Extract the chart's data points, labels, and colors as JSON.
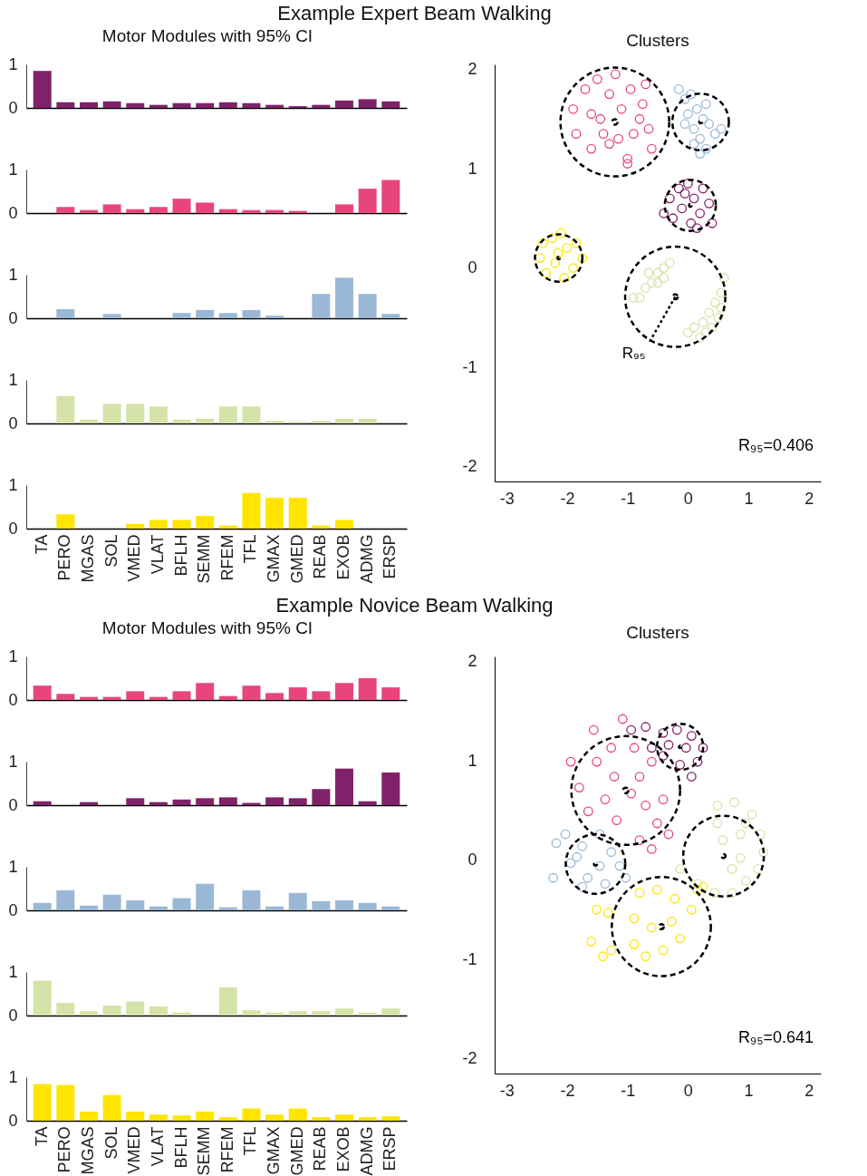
{
  "chart_data": [
    {
      "type": "bar",
      "title": "Example Expert Beam Walking",
      "subtitle": "Motor Modules with 95% CI",
      "categories": [
        null,
        null,
        null,
        null,
        null,
        null,
        null,
        null,
        null,
        null,
        null,
        null,
        null,
        null,
        null,
        null
      ],
      "values": [
        0.85,
        0.13,
        0.13,
        0.15,
        0.11,
        0.07,
        0.11,
        0.11,
        0.13,
        0.11,
        0.07,
        0.04,
        0.07,
        0.17,
        0.2,
        0.15
      ],
      "color": "#80226a",
      "ylim": [
        0,
        1
      ],
      "yticks": [
        0,
        1
      ],
      "tick_labels": "y"
    },
    {
      "type": "bar",
      "categories": [
        null,
        null,
        null,
        null,
        null,
        null,
        null,
        null,
        null,
        null,
        null,
        null,
        null,
        null,
        null,
        null
      ],
      "values": [
        0,
        0.14,
        0.07,
        0.2,
        0.09,
        0.14,
        0.33,
        0.24,
        0.09,
        0.07,
        0.07,
        0.05,
        0,
        0.2,
        0.56,
        0.76
      ],
      "color": "#e8457c",
      "ylim": [
        0,
        1
      ],
      "yticks": [
        0,
        1
      ],
      "tick_labels": "y"
    },
    {
      "type": "bar",
      "categories": [
        null,
        null,
        null,
        null,
        null,
        null,
        null,
        null,
        null,
        null,
        null,
        null,
        null,
        null,
        null,
        null
      ],
      "values": [
        0,
        0.21,
        0,
        0.1,
        0,
        0,
        0.12,
        0.19,
        0.12,
        0.19,
        0.06,
        0,
        0.56,
        0.93,
        0.56,
        0.1
      ],
      "color": "#9ab8d6",
      "ylim": [
        0,
        1
      ],
      "yticks": [
        0,
        1
      ],
      "tick_labels": "y"
    },
    {
      "type": "bar",
      "categories": [
        null,
        null,
        null,
        null,
        null,
        null,
        null,
        null,
        null,
        null,
        null,
        null,
        null,
        null,
        null,
        null
      ],
      "values": [
        0,
        0.63,
        0.09,
        0.45,
        0.45,
        0.39,
        0.09,
        0.11,
        0.39,
        0.39,
        0.06,
        0.04,
        0.06,
        0.11,
        0.11,
        0
      ],
      "color": "#d5e3a8",
      "ylim": [
        0,
        1
      ],
      "yticks": [
        0,
        1
      ],
      "tick_labels": "y"
    },
    {
      "type": "bar",
      "categories": [
        "TA",
        "PERO",
        "MGAS",
        "SOL",
        "VMED",
        "VLAT",
        "BFLH",
        "SEMM",
        "RFEM",
        "TFL",
        "GMAX",
        "GMED",
        "REAB",
        "EXOB",
        "ADMG",
        "ERSP"
      ],
      "values": [
        0,
        0.33,
        0,
        0,
        0.11,
        0.2,
        0.2,
        0.29,
        0.07,
        0.82,
        0.71,
        0.71,
        0.07,
        0.2,
        0,
        0
      ],
      "color": "#ffe500",
      "ylim": [
        0,
        1
      ],
      "yticks": [
        0,
        1
      ]
    },
    {
      "type": "scatter",
      "title": "Clusters",
      "xlim": [
        -3.2,
        2.2
      ],
      "xticks": [
        -3,
        -2,
        -1,
        0,
        1,
        2
      ],
      "ylim": [
        -2.15,
        2.05
      ],
      "yticks": [
        -2,
        -1,
        0,
        1,
        2
      ],
      "annotations": [
        {
          "text": "R₉₅",
          "x": -0.64,
          "y": -0.75
        },
        "R₉₅=0.406"
      ],
      "series": [
        {
          "color": "#e8457c",
          "marker": "circle",
          "x": [
            -1.9,
            -1.85,
            -1.7,
            -1.6,
            -1.5,
            -1.45,
            -1.3,
            -1.3,
            -1.2,
            -1.1,
            -1.0,
            -0.95,
            -0.9,
            -0.75,
            -0.7,
            -0.65,
            -0.6,
            -1.0,
            -1.4,
            -1.6,
            -0.8,
            -1.15
          ],
          "values": [
            1.6,
            1.35,
            1.8,
            1.2,
            1.9,
            1.5,
            1.75,
            1.25,
            1.95,
            1.6,
            1.1,
            1.8,
            1.35,
            1.65,
            1.85,
            1.4,
            1.2,
            1.05,
            1.35,
            1.55,
            1.5,
            1.3
          ]
        },
        {
          "color": "#9ab8d6",
          "marker": "circle",
          "x": [
            -0.15,
            -0.05,
            0.0,
            0.05,
            0.1,
            0.15,
            0.2,
            0.25,
            0.3,
            0.35,
            0.45,
            0.55,
            0.2,
            -0.05,
            0.3,
            0.1
          ],
          "values": [
            1.8,
            1.7,
            1.55,
            1.75,
            1.4,
            1.6,
            1.3,
            1.5,
            1.2,
            1.45,
            1.35,
            1.4,
            1.15,
            1.45,
            1.65,
            1.25
          ]
        },
        {
          "color": "#80226a",
          "marker": "circle",
          "x": [
            -0.4,
            -0.3,
            -0.25,
            -0.15,
            -0.1,
            0.0,
            0.05,
            0.1,
            0.2,
            0.25,
            0.35,
            0.4,
            0.15,
            -0.05
          ],
          "values": [
            0.55,
            0.7,
            0.5,
            0.8,
            0.6,
            0.85,
            0.45,
            0.7,
            0.55,
            0.8,
            0.65,
            0.45,
            0.4,
            0.75
          ]
        },
        {
          "color": "#ffe500",
          "marker": "circle",
          "x": [
            -2.45,
            -2.4,
            -2.35,
            -2.25,
            -2.2,
            -2.1,
            -2.05,
            -2.0,
            -1.9,
            -1.85,
            -1.75,
            -2.15
          ],
          "values": [
            0.1,
            0.25,
            -0.05,
            0.3,
            0.05,
            0.35,
            -0.1,
            0.2,
            0.0,
            0.25,
            0.1,
            0.15
          ]
        },
        {
          "color": "#d5e3a8",
          "marker": "circle",
          "x": [
            -0.3,
            -0.4,
            -0.5,
            -0.6,
            -0.7,
            -0.8,
            -0.9,
            -0.5,
            -0.65,
            -0.4,
            0.6,
            0.55,
            0.45,
            0.5,
            0.35,
            0.25,
            0.1,
            0.2,
            0.0,
            0.3,
            0.4,
            0.55
          ],
          "values": [
            0.05,
            0.0,
            -0.05,
            -0.15,
            -0.2,
            -0.3,
            -0.3,
            -0.15,
            -0.05,
            -0.1,
            -0.1,
            -0.25,
            -0.35,
            -0.5,
            -0.45,
            -0.55,
            -0.6,
            -0.7,
            -0.65,
            -0.65,
            -0.6,
            -0.4
          ]
        },
        {
          "type": "line",
          "color": "#000000",
          "line_style": "dotted",
          "x": [
            -0.21,
            -0.64
          ],
          "values": [
            -0.29,
            -0.75
          ]
        },
        {
          "type": "bubble",
          "color": "#000000",
          "line_style": "dashed",
          "x": [
            -1.21,
            0.21,
            0.04,
            -2.14,
            -0.21
          ],
          "values": [
            1.47,
            1.47,
            0.63,
            0.1,
            -0.29
          ],
          "sizes": [
            1,
            0.27,
            0.22,
            0.19,
            0.85
          ]
        }
      ]
    },
    {
      "type": "bar",
      "title": "Example Novice Beam Walking",
      "subtitle": "Motor Modules with 95% CI",
      "categories": [
        null,
        null,
        null,
        null,
        null,
        null,
        null,
        null,
        null,
        null,
        null,
        null,
        null,
        null,
        null,
        null
      ],
      "values": [
        0.33,
        0.14,
        0.07,
        0.07,
        0.2,
        0.07,
        0.2,
        0.39,
        0.09,
        0.33,
        0.16,
        0.29,
        0.2,
        0.39,
        0.5,
        0.29
      ],
      "color": "#e8457c",
      "ylim": [
        0,
        1
      ],
      "yticks": [
        0,
        1
      ],
      "tick_labels": "y"
    },
    {
      "type": "bar",
      "categories": [
        null,
        null,
        null,
        null,
        null,
        null,
        null,
        null,
        null,
        null,
        null,
        null,
        null,
        null,
        null,
        null
      ],
      "values": [
        0.09,
        0,
        0.07,
        0,
        0.16,
        0.07,
        0.13,
        0.16,
        0.18,
        0.05,
        0.18,
        0.16,
        0.37,
        0.84,
        0.09,
        0.75
      ],
      "color": "#80226a",
      "ylim": [
        0,
        1
      ],
      "yticks": [
        0,
        1
      ],
      "tick_labels": "y"
    },
    {
      "type": "bar",
      "categories": [
        null,
        null,
        null,
        null,
        null,
        null,
        null,
        null,
        null,
        null,
        null,
        null,
        null,
        null,
        null,
        null
      ],
      "values": [
        0.17,
        0.46,
        0.11,
        0.36,
        0.23,
        0.09,
        0.28,
        0.61,
        0.07,
        0.46,
        0.09,
        0.4,
        0.21,
        0.23,
        0.17,
        0.09
      ],
      "color": "#9ab8d6",
      "ylim": [
        0,
        1
      ],
      "yticks": [
        0,
        1
      ],
      "tick_labels": "y"
    },
    {
      "type": "bar",
      "categories": [
        null,
        null,
        null,
        null,
        null,
        null,
        null,
        null,
        null,
        null,
        null,
        null,
        null,
        null,
        null,
        null
      ],
      "values": [
        0.8,
        0.29,
        0.1,
        0.23,
        0.32,
        0.21,
        0.07,
        0,
        0.65,
        0.12,
        0.07,
        0.1,
        0.1,
        0.16,
        0.07,
        0.16
      ],
      "color": "#d5e3a8",
      "ylim": [
        0,
        1
      ],
      "yticks": [
        0,
        1
      ],
      "tick_labels": "y"
    },
    {
      "type": "bar",
      "categories": [
        "TA",
        "PERO",
        "MGAS",
        "SOL",
        "VMED",
        "VLAT",
        "BFLH",
        "SEMM",
        "RFEM",
        "TFL",
        "GMAX",
        "GMED",
        "REAB",
        "EXOB",
        "ADMG",
        "ERSP"
      ],
      "values": [
        0.84,
        0.82,
        0.21,
        0.59,
        0.21,
        0.14,
        0.12,
        0.21,
        0.08,
        0.28,
        0.14,
        0.28,
        0.08,
        0.14,
        0.08,
        0.1
      ],
      "color": "#ffe500",
      "ylim": [
        0,
        1
      ],
      "yticks": [
        0,
        1
      ]
    },
    {
      "type": "scatter",
      "title": "Clusters",
      "xlim": [
        -3.2,
        2.2
      ],
      "xticks": [
        -3,
        -2,
        -1,
        0,
        1,
        2
      ],
      "ylim": [
        -2.15,
        2.05
      ],
      "yticks": [
        -2,
        -1,
        0,
        1,
        2
      ],
      "annotations": [
        "R₉₅=0.641"
      ],
      "series": [
        {
          "color": "#e8457c",
          "marker": "circle",
          "x": [
            -1.56,
            -1.08,
            -1.94,
            -1.8,
            -1.51,
            -1.27,
            -0.89,
            -1.65,
            -1.22,
            -0.8,
            -1.18,
            -0.7,
            -0.41,
            -0.51,
            -0.32,
            -0.8,
            -0.6,
            -1.37,
            -0.6,
            -0.94
          ],
          "values": [
            1.31,
            1.42,
            0.99,
            0.73,
            0.99,
            1.13,
            1.13,
            0.49,
            0.84,
            0.84,
            0.4,
            0.55,
            0.61,
            0.37,
            0.26,
            0.2,
            0.11,
            0.61,
            0.99,
            0.67
          ]
        },
        {
          "color": "#80226a",
          "marker": "circle",
          "x": [
            -0.94,
            -0.7,
            -0.41,
            -0.18,
            0.06,
            0.25,
            0.16,
            0.06,
            -0.13,
            -0.41,
            -0.32,
            -0.6,
            -0.03
          ],
          "values": [
            1.31,
            1.34,
            1.28,
            1.31,
            1.25,
            1.13,
            0.99,
            0.84,
            0.96,
            1.05,
            1.16,
            1.13,
            1.13
          ]
        },
        {
          "color": "#d5e3a8",
          "marker": "circle",
          "x": [
            0.49,
            0.77,
            1.06,
            1.2,
            1.25,
            1.16,
            0.96,
            0.73,
            0.44,
            0.16,
            -0.13,
            0.49,
            0.58,
            0.87,
            0.87,
            0.73,
            0.96
          ],
          "values": [
            0.55,
            0.58,
            0.46,
            0.26,
            0.08,
            -0.09,
            -0.21,
            -0.33,
            -0.33,
            -0.24,
            -0.09,
            0.37,
            0.2,
            0.26,
            0.02,
            -0.09,
            0.37
          ]
        },
        {
          "color": "#9ab8d6",
          "marker": "circle",
          "x": [
            -2.23,
            -2.18,
            -1.94,
            -2.03,
            -1.75,
            -1.66,
            -1.46,
            -1.27,
            -1.13,
            -1.03,
            -1.37,
            -1.75,
            -1.84,
            -1.46
          ],
          "values": [
            -0.18,
            0.17,
            -0.03,
            0.26,
            0.14,
            -0.18,
            0.26,
            0.08,
            -0.06,
            -0.18,
            -0.24,
            -0.27,
            0.03,
            -0.06
          ]
        },
        {
          "color": "#ffe500",
          "marker": "circle",
          "x": [
            -1.51,
            -1.32,
            -1.6,
            -1.27,
            -1.41,
            -0.89,
            -0.8,
            -0.89,
            -0.7,
            -0.51,
            -0.22,
            0.06,
            -0.13,
            -0.41,
            0.16,
            0.25,
            -0.6,
            -0.27
          ],
          "values": [
            -0.5,
            -0.53,
            -0.82,
            -0.91,
            -0.97,
            -0.59,
            -0.33,
            -0.85,
            -0.97,
            -0.3,
            -0.39,
            -0.5,
            -0.79,
            -0.91,
            -0.3,
            -0.27,
            -0.68,
            -0.62
          ]
        },
        {
          "type": "bubble",
          "color": "#000000",
          "line_style": "dashed",
          "x": [
            -1.03,
            -0.13,
            0.59,
            -1.53,
            -0.44
          ],
          "values": [
            0.7,
            1.14,
            0.04,
            -0.04,
            -0.67
          ],
          "sizes": [
            1,
            0.18,
            0.55,
            0.3,
            0.83
          ]
        }
      ]
    }
  ]
}
